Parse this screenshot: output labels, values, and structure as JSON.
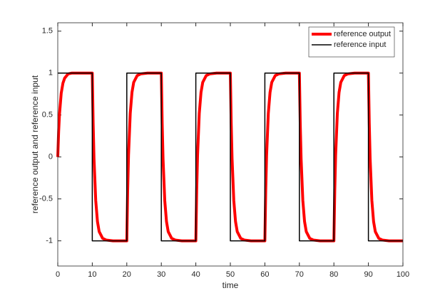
{
  "chart_data": {
    "type": "line",
    "xlabel": "time",
    "ylabel": "reference output and reference input",
    "xlim": [
      0,
      100
    ],
    "xticks": [
      0,
      10,
      20,
      30,
      40,
      50,
      60,
      70,
      80,
      90,
      100
    ],
    "ylim": [
      -1.3,
      1.6
    ],
    "yticks": [
      -1,
      -0.5,
      0,
      0.5,
      1,
      1.5
    ],
    "grid": false,
    "legend": "top-right",
    "series": [
      {
        "name": "reference output",
        "color": "#ff0000",
        "width": 4,
        "x": [
          0,
          0.25,
          0.5,
          1,
          1.5,
          2,
          3,
          4,
          6,
          10,
          10.25,
          10.5,
          11,
          11.5,
          12,
          13,
          14,
          16,
          20,
          20.25,
          20.5,
          21,
          21.5,
          22,
          23,
          24,
          26,
          30,
          30.25,
          30.5,
          31,
          31.5,
          32,
          33,
          34,
          36,
          40,
          40.25,
          40.5,
          41,
          41.5,
          42,
          43,
          44,
          46,
          50,
          50.25,
          50.5,
          51,
          51.5,
          52,
          53,
          54,
          56,
          60,
          60.25,
          60.5,
          61,
          61.5,
          62,
          63,
          64,
          66,
          70,
          70.25,
          70.5,
          71,
          71.5,
          72,
          73,
          74,
          76,
          80,
          80.25,
          80.5,
          81,
          81.5,
          82,
          83,
          84,
          86,
          90,
          90.25,
          90.5,
          91,
          91.5,
          92,
          93,
          94,
          96,
          100
        ],
        "values": [
          0,
          0.3,
          0.51,
          0.76,
          0.88,
          0.94,
          0.99,
          1,
          1,
          1,
          0.4,
          -0.02,
          -0.52,
          -0.77,
          -0.89,
          -0.97,
          -0.99,
          -1,
          -1,
          -0.4,
          0.02,
          0.52,
          0.77,
          0.89,
          0.97,
          0.99,
          1,
          1,
          0.4,
          -0.02,
          -0.52,
          -0.77,
          -0.89,
          -0.97,
          -0.99,
          -1,
          -1,
          -0.4,
          0.02,
          0.52,
          0.77,
          0.89,
          0.97,
          0.99,
          1,
          1,
          0.4,
          -0.02,
          -0.52,
          -0.77,
          -0.89,
          -0.97,
          -0.99,
          -1,
          -1,
          -0.4,
          0.02,
          0.52,
          0.77,
          0.89,
          0.97,
          0.99,
          1,
          1,
          0.4,
          -0.02,
          -0.52,
          -0.77,
          -0.89,
          -0.97,
          -0.99,
          -1,
          -1,
          -0.4,
          0.02,
          0.52,
          0.77,
          0.89,
          0.97,
          0.99,
          1,
          1,
          0.4,
          -0.02,
          -0.52,
          -0.77,
          -0.89,
          -0.97,
          -0.99,
          -1,
          -1
        ]
      },
      {
        "name": "reference input",
        "color": "#000000",
        "width": 1.5,
        "x": [
          0,
          10,
          10,
          20,
          20,
          30,
          30,
          40,
          40,
          50,
          50,
          60,
          60,
          70,
          70,
          80,
          80,
          90,
          90,
          100
        ],
        "values": [
          1,
          1,
          -1,
          -1,
          1,
          1,
          -1,
          -1,
          1,
          1,
          -1,
          -1,
          1,
          1,
          -1,
          -1,
          1,
          1,
          -1,
          -1
        ]
      }
    ]
  }
}
